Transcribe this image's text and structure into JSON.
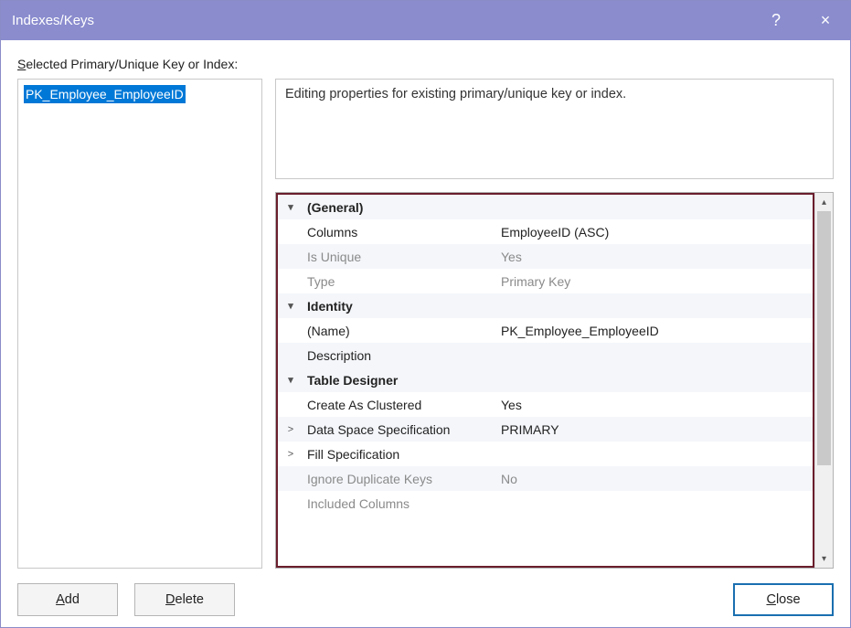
{
  "window": {
    "title": "Indexes/Keys",
    "help_icon": "?",
    "close_icon": "×"
  },
  "body_label_prefix": "S",
  "body_label_rest": "elected Primary/Unique Key or Index:",
  "list": {
    "items": [
      "PK_Employee_EmployeeID"
    ]
  },
  "description": "Editing properties for existing primary/unique key or index.",
  "grid": {
    "highlight_border_color": "#6a1e2c",
    "sections": [
      {
        "label": "(General)",
        "rows": [
          {
            "key": "Columns",
            "val": "EmployeeID (ASC)",
            "disabled": false
          },
          {
            "key": "Is Unique",
            "val": "Yes",
            "disabled": true
          },
          {
            "key": "Type",
            "val": "Primary Key",
            "disabled": true
          }
        ]
      },
      {
        "label": "Identity",
        "rows": [
          {
            "key": "(Name)",
            "val": "PK_Employee_EmployeeID",
            "disabled": false
          },
          {
            "key": "Description",
            "val": "",
            "disabled": false
          }
        ]
      },
      {
        "label": "Table Designer",
        "rows": [
          {
            "key": "Create As Clustered",
            "val": "Yes",
            "disabled": false
          },
          {
            "key": "Data Space Specification",
            "val": "PRIMARY",
            "disabled": false,
            "expander": ">"
          },
          {
            "key": "Fill Specification",
            "val": "",
            "disabled": false,
            "expander": ">"
          },
          {
            "key": "Ignore Duplicate Keys",
            "val": "No",
            "disabled": true
          },
          {
            "key": "Included Columns",
            "val": "",
            "disabled": true
          }
        ]
      }
    ]
  },
  "buttons": {
    "add_u": "A",
    "add_rest": "dd",
    "delete_u": "D",
    "delete_rest": "elete",
    "close_u": "C",
    "close_rest": "lose"
  },
  "colors": {
    "titlebar_bg": "#8a8cce",
    "selection_bg": "#0078d7",
    "border_gray": "#c8c8c8",
    "disabled_text": "#8a8a8a",
    "section_bg": "#f4f6fa",
    "close_border": "#1a6fb0"
  }
}
